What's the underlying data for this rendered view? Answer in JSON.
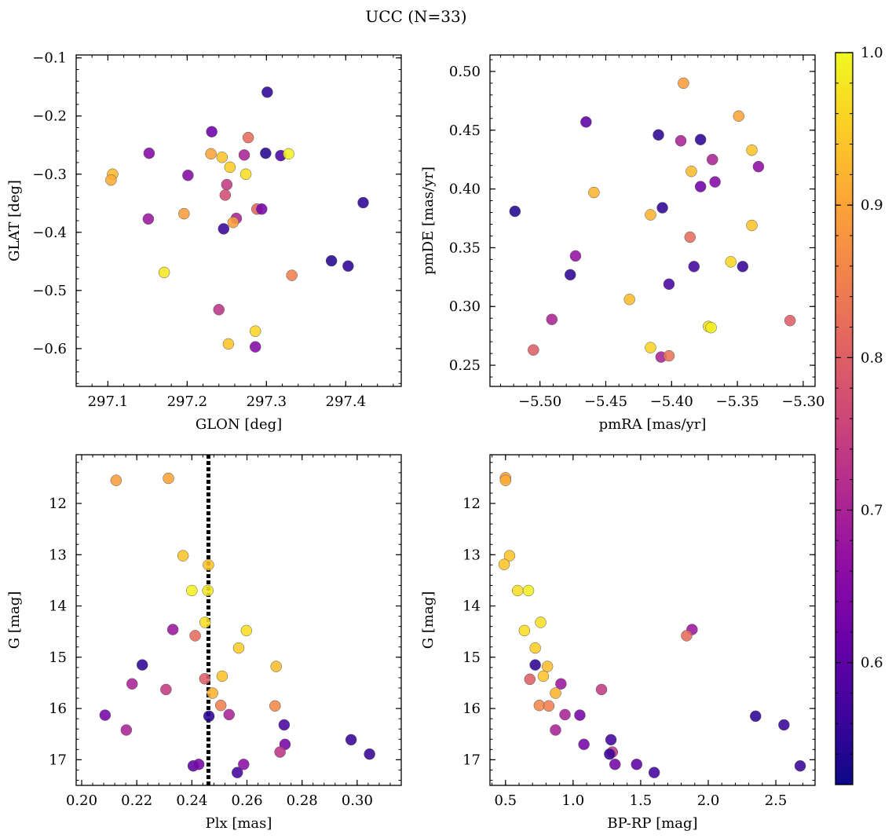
{
  "title": "UCC (N=33)",
  "colorbar": {
    "range": [
      0.52,
      1.0
    ],
    "ticks": [
      0.6,
      0.7,
      0.8,
      0.9,
      1.0
    ],
    "tick_labels": [
      "0.6",
      "0.7",
      "0.8",
      "0.9",
      "1.0"
    ],
    "colormap": "plasma"
  },
  "chart_data": [
    {
      "type": "scatter",
      "xlabel": "GLON [deg]",
      "ylabel": "GLAT [deg]",
      "xlim": [
        297.06,
        297.47
      ],
      "ylim": [
        -0.665,
        -0.095
      ],
      "xticks": [
        297.1,
        297.2,
        297.3,
        297.4
      ],
      "xtick_labels": [
        "297.1",
        "297.2",
        "297.3",
        "297.4"
      ],
      "yticks": [
        -0.6,
        -0.5,
        -0.4,
        -0.3,
        -0.2,
        -0.1
      ],
      "ytick_labels": [
        "−0.6",
        "−0.5",
        "−0.4",
        "−0.3",
        "−0.2",
        "−0.1"
      ],
      "points": [
        {
          "x": 297.301,
          "y": -0.159,
          "c": 0.55
        },
        {
          "x": 297.231,
          "y": -0.227,
          "c": 0.62
        },
        {
          "x": 297.152,
          "y": -0.264,
          "c": 0.65
        },
        {
          "x": 297.277,
          "y": -0.237,
          "c": 0.82
        },
        {
          "x": 297.23,
          "y": -0.265,
          "c": 0.9
        },
        {
          "x": 297.244,
          "y": -0.271,
          "c": 0.94
        },
        {
          "x": 297.299,
          "y": -0.264,
          "c": 0.54
        },
        {
          "x": 297.318,
          "y": -0.268,
          "c": 0.58
        },
        {
          "x": 297.328,
          "y": -0.265,
          "c": 0.99
        },
        {
          "x": 297.106,
          "y": -0.3,
          "c": 0.93
        },
        {
          "x": 297.104,
          "y": -0.31,
          "c": 0.91
        },
        {
          "x": 297.201,
          "y": -0.302,
          "c": 0.65
        },
        {
          "x": 297.254,
          "y": -0.288,
          "c": 0.95
        },
        {
          "x": 297.272,
          "y": -0.267,
          "c": 0.7
        },
        {
          "x": 297.274,
          "y": -0.3,
          "c": 0.97
        },
        {
          "x": 297.25,
          "y": -0.318,
          "c": 0.74
        },
        {
          "x": 297.248,
          "y": -0.336,
          "c": 0.77
        },
        {
          "x": 297.151,
          "y": -0.377,
          "c": 0.68
        },
        {
          "x": 297.196,
          "y": -0.368,
          "c": 0.89
        },
        {
          "x": 297.262,
          "y": -0.376,
          "c": 0.7
        },
        {
          "x": 297.258,
          "y": -0.383,
          "c": 0.89
        },
        {
          "x": 297.246,
          "y": -0.394,
          "c": 0.56
        },
        {
          "x": 297.288,
          "y": -0.36,
          "c": 0.81
        },
        {
          "x": 297.294,
          "y": -0.36,
          "c": 0.63
        },
        {
          "x": 297.422,
          "y": -0.349,
          "c": 0.55
        },
        {
          "x": 297.171,
          "y": -0.469,
          "c": 0.98
        },
        {
          "x": 297.382,
          "y": -0.449,
          "c": 0.54
        },
        {
          "x": 297.403,
          "y": -0.458,
          "c": 0.55
        },
        {
          "x": 297.332,
          "y": -0.474,
          "c": 0.85
        },
        {
          "x": 297.24,
          "y": -0.533,
          "c": 0.73
        },
        {
          "x": 297.286,
          "y": -0.57,
          "c": 0.96
        },
        {
          "x": 297.252,
          "y": -0.592,
          "c": 0.94
        },
        {
          "x": 297.286,
          "y": -0.597,
          "c": 0.65
        }
      ]
    },
    {
      "type": "scatter",
      "xlabel": "pmRA [mas/yr]",
      "ylabel": "pmDE [mas/yr]",
      "xlim": [
        -5.538,
        -5.291
      ],
      "ylim": [
        0.232,
        0.514
      ],
      "xticks": [
        -5.5,
        -5.45,
        -5.4,
        -5.35,
        -5.3
      ],
      "xtick_labels": [
        "−5.50",
        "−5.45",
        "−5.40",
        "−5.35",
        "−5.30"
      ],
      "yticks": [
        0.25,
        0.3,
        0.35,
        0.4,
        0.45,
        0.5
      ],
      "ytick_labels": [
        "0.25",
        "0.30",
        "0.35",
        "0.40",
        "0.45",
        "0.50"
      ],
      "points": [
        {
          "x": -5.391,
          "y": 0.49,
          "c": 0.89
        },
        {
          "x": -5.349,
          "y": 0.462,
          "c": 0.9
        },
        {
          "x": -5.465,
          "y": 0.457,
          "c": 0.6
        },
        {
          "x": -5.41,
          "y": 0.446,
          "c": 0.55
        },
        {
          "x": -5.393,
          "y": 0.441,
          "c": 0.7
        },
        {
          "x": -5.378,
          "y": 0.442,
          "c": 0.55
        },
        {
          "x": -5.339,
          "y": 0.433,
          "c": 0.94
        },
        {
          "x": -5.369,
          "y": 0.425,
          "c": 0.7
        },
        {
          "x": -5.334,
          "y": 0.419,
          "c": 0.66
        },
        {
          "x": -5.385,
          "y": 0.415,
          "c": 0.93
        },
        {
          "x": -5.367,
          "y": 0.406,
          "c": 0.65
        },
        {
          "x": -5.378,
          "y": 0.402,
          "c": 0.62
        },
        {
          "x": -5.459,
          "y": 0.397,
          "c": 0.92
        },
        {
          "x": -5.519,
          "y": 0.381,
          "c": 0.54
        },
        {
          "x": -5.407,
          "y": 0.384,
          "c": 0.55
        },
        {
          "x": -5.416,
          "y": 0.378,
          "c": 0.92
        },
        {
          "x": -5.339,
          "y": 0.369,
          "c": 0.94
        },
        {
          "x": -5.386,
          "y": 0.359,
          "c": 0.82
        },
        {
          "x": -5.473,
          "y": 0.343,
          "c": 0.67
        },
        {
          "x": -5.355,
          "y": 0.338,
          "c": 0.96
        },
        {
          "x": -5.383,
          "y": 0.334,
          "c": 0.57
        },
        {
          "x": -5.346,
          "y": 0.334,
          "c": 0.56
        },
        {
          "x": -5.477,
          "y": 0.327,
          "c": 0.55
        },
        {
          "x": -5.402,
          "y": 0.319,
          "c": 0.58
        },
        {
          "x": -5.432,
          "y": 0.306,
          "c": 0.93
        },
        {
          "x": -5.491,
          "y": 0.289,
          "c": 0.7
        },
        {
          "x": -5.31,
          "y": 0.288,
          "c": 0.8
        },
        {
          "x": -5.372,
          "y": 0.283,
          "c": 0.97
        },
        {
          "x": -5.37,
          "y": 0.282,
          "c": 0.99
        },
        {
          "x": -5.416,
          "y": 0.265,
          "c": 0.96
        },
        {
          "x": -5.505,
          "y": 0.263,
          "c": 0.8
        },
        {
          "x": -5.408,
          "y": 0.257,
          "c": 0.7
        },
        {
          "x": -5.402,
          "y": 0.258,
          "c": 0.83
        }
      ]
    },
    {
      "type": "scatter",
      "xlabel": "Plx [mas]",
      "ylabel": "G [mag]",
      "xlim": [
        0.198,
        0.316
      ],
      "ylim": [
        17.5,
        11.05
      ],
      "y_inverted": true,
      "xticks": [
        0.2,
        0.22,
        0.24,
        0.26,
        0.28,
        0.3
      ],
      "xtick_labels": [
        "0.20",
        "0.22",
        "0.24",
        "0.26",
        "0.28",
        "0.30"
      ],
      "yticks": [
        12,
        13,
        14,
        15,
        16,
        17
      ],
      "ytick_labels": [
        "12",
        "13",
        "14",
        "15",
        "16",
        "17"
      ],
      "vline": {
        "x": 0.246,
        "style": "dotted"
      },
      "points": [
        {
          "x": 0.2125,
          "y": 11.55,
          "c": 0.89
        },
        {
          "x": 0.2315,
          "y": 11.51,
          "c": 0.9
        },
        {
          "x": 0.2368,
          "y": 13.02,
          "c": 0.94
        },
        {
          "x": 0.246,
          "y": 13.2,
          "c": 0.94
        },
        {
          "x": 0.24,
          "y": 13.7,
          "c": 0.99
        },
        {
          "x": 0.2458,
          "y": 13.7,
          "c": 0.98
        },
        {
          "x": 0.2448,
          "y": 14.32,
          "c": 0.97
        },
        {
          "x": 0.2598,
          "y": 14.48,
          "c": 0.97
        },
        {
          "x": 0.2331,
          "y": 14.46,
          "c": 0.68
        },
        {
          "x": 0.2412,
          "y": 14.58,
          "c": 0.82
        },
        {
          "x": 0.257,
          "y": 14.82,
          "c": 0.95
        },
        {
          "x": 0.222,
          "y": 15.15,
          "c": 0.55
        },
        {
          "x": 0.2706,
          "y": 15.18,
          "c": 0.93
        },
        {
          "x": 0.251,
          "y": 15.37,
          "c": 0.94
        },
        {
          "x": 0.2447,
          "y": 15.42,
          "c": 0.8
        },
        {
          "x": 0.2183,
          "y": 15.52,
          "c": 0.7
        },
        {
          "x": 0.2306,
          "y": 15.63,
          "c": 0.74
        },
        {
          "x": 0.2475,
          "y": 15.7,
          "c": 0.92
        },
        {
          "x": 0.2505,
          "y": 15.94,
          "c": 0.85
        },
        {
          "x": 0.2702,
          "y": 15.95,
          "c": 0.86
        },
        {
          "x": 0.2085,
          "y": 16.13,
          "c": 0.63
        },
        {
          "x": 0.2535,
          "y": 16.12,
          "c": 0.7
        },
        {
          "x": 0.2462,
          "y": 16.15,
          "c": 0.55
        },
        {
          "x": 0.2735,
          "y": 16.32,
          "c": 0.58
        },
        {
          "x": 0.2162,
          "y": 16.42,
          "c": 0.7
        },
        {
          "x": 0.2978,
          "y": 16.61,
          "c": 0.56
        },
        {
          "x": 0.2738,
          "y": 16.7,
          "c": 0.63
        },
        {
          "x": 0.272,
          "y": 16.85,
          "c": 0.73
        },
        {
          "x": 0.3045,
          "y": 16.89,
          "c": 0.56
        },
        {
          "x": 0.2405,
          "y": 17.12,
          "c": 0.6
        },
        {
          "x": 0.2425,
          "y": 17.09,
          "c": 0.63
        },
        {
          "x": 0.2588,
          "y": 17.09,
          "c": 0.66
        },
        {
          "x": 0.2565,
          "y": 17.25,
          "c": 0.57
        }
      ]
    },
    {
      "type": "scatter",
      "xlabel": "BP-RP [mag]",
      "ylabel": "G [mag]",
      "xlim": [
        0.385,
        2.79
      ],
      "ylim": [
        17.5,
        11.05
      ],
      "y_inverted": true,
      "xticks": [
        0.5,
        1.0,
        1.5,
        2.0,
        2.5
      ],
      "xtick_labels": [
        "0.5",
        "1.0",
        "1.5",
        "2.0",
        "2.5"
      ],
      "yticks": [
        12,
        13,
        14,
        15,
        16,
        17
      ],
      "ytick_labels": [
        "12",
        "13",
        "14",
        "15",
        "16",
        "17"
      ],
      "points": [
        {
          "x": 0.5,
          "y": 11.5,
          "c": 0.9
        },
        {
          "x": 0.5,
          "y": 11.55,
          "c": 0.91
        },
        {
          "x": 0.53,
          "y": 13.02,
          "c": 0.94
        },
        {
          "x": 0.49,
          "y": 13.19,
          "c": 0.94
        },
        {
          "x": 0.59,
          "y": 13.7,
          "c": 0.97
        },
        {
          "x": 0.67,
          "y": 13.7,
          "c": 0.99
        },
        {
          "x": 0.76,
          "y": 14.32,
          "c": 0.97
        },
        {
          "x": 0.64,
          "y": 14.48,
          "c": 0.97
        },
        {
          "x": 1.88,
          "y": 14.46,
          "c": 0.68
        },
        {
          "x": 1.84,
          "y": 14.58,
          "c": 0.82
        },
        {
          "x": 0.72,
          "y": 14.82,
          "c": 0.95
        },
        {
          "x": 0.72,
          "y": 15.15,
          "c": 0.55
        },
        {
          "x": 0.81,
          "y": 15.18,
          "c": 0.93
        },
        {
          "x": 0.78,
          "y": 15.37,
          "c": 0.94
        },
        {
          "x": 0.68,
          "y": 15.43,
          "c": 0.8
        },
        {
          "x": 0.91,
          "y": 15.52,
          "c": 0.68
        },
        {
          "x": 1.21,
          "y": 15.63,
          "c": 0.74
        },
        {
          "x": 0.87,
          "y": 15.7,
          "c": 0.92
        },
        {
          "x": 0.75,
          "y": 15.94,
          "c": 0.86
        },
        {
          "x": 0.82,
          "y": 15.95,
          "c": 0.85
        },
        {
          "x": 0.94,
          "y": 16.12,
          "c": 0.7
        },
        {
          "x": 1.05,
          "y": 16.13,
          "c": 0.63
        },
        {
          "x": 2.35,
          "y": 16.15,
          "c": 0.55
        },
        {
          "x": 2.56,
          "y": 16.32,
          "c": 0.56
        },
        {
          "x": 0.87,
          "y": 16.42,
          "c": 0.7
        },
        {
          "x": 1.28,
          "y": 16.61,
          "c": 0.57
        },
        {
          "x": 1.08,
          "y": 16.7,
          "c": 0.63
        },
        {
          "x": 1.29,
          "y": 16.85,
          "c": 0.73
        },
        {
          "x": 1.27,
          "y": 16.89,
          "c": 0.56
        },
        {
          "x": 1.31,
          "y": 17.09,
          "c": 0.63
        },
        {
          "x": 1.47,
          "y": 17.09,
          "c": 0.6
        },
        {
          "x": 2.68,
          "y": 17.12,
          "c": 0.56
        },
        {
          "x": 1.6,
          "y": 17.25,
          "c": 0.57
        }
      ]
    }
  ]
}
